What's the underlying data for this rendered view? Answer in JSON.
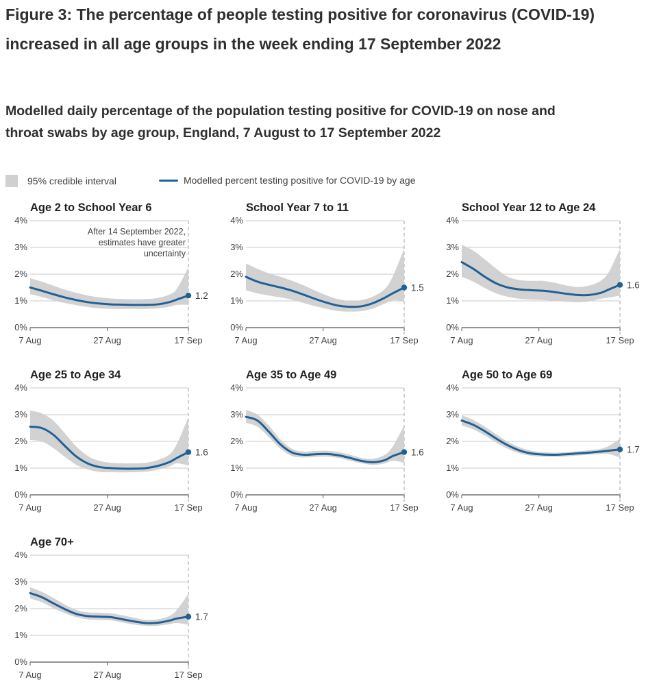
{
  "figure": {
    "title": "Figure 3: The percentage of people testing positive for coronavirus (COVID-19) increased in all age groups in the week ending 17 September 2022",
    "subtitle": "Modelled daily percentage of the population testing positive for COVID-19 on nose and throat swabs by age group, England, 7 August to 17 September 2022"
  },
  "legend": {
    "ci_label": "95% credible interval",
    "line_label": "Modelled percent testing positive for COVID-19 by age"
  },
  "colors": {
    "line": "#206095",
    "interval": "#d0d0d0",
    "grid": "#c8c8c8",
    "axis": "#555555",
    "marker_line": "#b8b8b8"
  },
  "chart_data": [
    {
      "type": "line",
      "title": "Age 2 to School Year 6",
      "x_dates": [
        "2022-08-07",
        "2022-08-10",
        "2022-08-13",
        "2022-08-16",
        "2022-08-19",
        "2022-08-22",
        "2022-08-25",
        "2022-08-28",
        "2022-08-31",
        "2022-09-03",
        "2022-09-06",
        "2022-09-09",
        "2022-09-12",
        "2022-09-14",
        "2022-09-17"
      ],
      "series": [
        {
          "values": [
            1.5,
            1.38,
            1.25,
            1.13,
            1.03,
            0.95,
            0.9,
            0.87,
            0.86,
            0.85,
            0.85,
            0.87,
            0.95,
            1.05,
            1.2
          ]
        }
      ],
      "ci_lower": [
        1.25,
        1.15,
        1.02,
        0.92,
        0.84,
        0.77,
        0.72,
        0.7,
        0.7,
        0.7,
        0.7,
        0.72,
        0.78,
        0.85,
        0.85
      ],
      "ci_upper": [
        1.85,
        1.72,
        1.57,
        1.42,
        1.3,
        1.2,
        1.13,
        1.09,
        1.07,
        1.06,
        1.07,
        1.11,
        1.23,
        1.45,
        2.25
      ],
      "end_value": "1.2",
      "annotation": [
        "After 14 September 2022,",
        "estimates have greater",
        "uncertainty"
      ],
      "x_tick_labels": [
        "7 Aug",
        "27 Aug",
        "17 Sep"
      ],
      "y_tick_labels": [
        "0%",
        "1%",
        "2%",
        "3%",
        "4%"
      ],
      "ylim": [
        0,
        4
      ],
      "marker_date": "2022-09-17"
    },
    {
      "type": "line",
      "title": "School Year 7 to 11",
      "x_dates": [
        "2022-08-07",
        "2022-08-10",
        "2022-08-13",
        "2022-08-16",
        "2022-08-19",
        "2022-08-22",
        "2022-08-25",
        "2022-08-28",
        "2022-08-31",
        "2022-09-03",
        "2022-09-06",
        "2022-09-09",
        "2022-09-12",
        "2022-09-14",
        "2022-09-17"
      ],
      "series": [
        {
          "values": [
            1.9,
            1.72,
            1.6,
            1.5,
            1.38,
            1.23,
            1.07,
            0.93,
            0.82,
            0.78,
            0.8,
            0.92,
            1.12,
            1.28,
            1.5
          ]
        }
      ],
      "ci_lower": [
        1.4,
        1.28,
        1.2,
        1.13,
        1.04,
        0.92,
        0.8,
        0.7,
        0.62,
        0.6,
        0.62,
        0.72,
        0.9,
        1.02,
        1.0
      ],
      "ci_upper": [
        2.4,
        2.2,
        2.03,
        1.9,
        1.75,
        1.58,
        1.38,
        1.2,
        1.06,
        1.0,
        1.03,
        1.17,
        1.45,
        1.9,
        2.95
      ],
      "end_value": "1.5",
      "x_tick_labels": [
        "7 Aug",
        "27 Aug",
        "17 Sep"
      ],
      "y_tick_labels": [
        "0%",
        "1%",
        "2%",
        "3%",
        "4%"
      ],
      "ylim": [
        0,
        4
      ],
      "marker_date": "2022-09-17"
    },
    {
      "type": "line",
      "title": "School Year 12 to Age 24",
      "x_dates": [
        "2022-08-07",
        "2022-08-10",
        "2022-08-13",
        "2022-08-16",
        "2022-08-19",
        "2022-08-22",
        "2022-08-25",
        "2022-08-28",
        "2022-08-31",
        "2022-09-03",
        "2022-09-06",
        "2022-09-09",
        "2022-09-12",
        "2022-09-14",
        "2022-09-17"
      ],
      "series": [
        {
          "values": [
            2.45,
            2.2,
            1.9,
            1.65,
            1.5,
            1.43,
            1.4,
            1.38,
            1.33,
            1.27,
            1.22,
            1.22,
            1.3,
            1.42,
            1.6
          ]
        }
      ],
      "ci_lower": [
        1.9,
        1.72,
        1.48,
        1.28,
        1.15,
        1.08,
        1.05,
        1.03,
        1.0,
        0.97,
        0.95,
        0.98,
        1.08,
        1.12,
        1.2
      ],
      "ci_upper": [
        3.1,
        2.88,
        2.55,
        2.2,
        1.9,
        1.78,
        1.75,
        1.75,
        1.68,
        1.58,
        1.52,
        1.57,
        1.75,
        2.05,
        2.95
      ],
      "end_value": "1.6",
      "x_tick_labels": [
        "7 Aug",
        "27 Aug",
        "17 Sep"
      ],
      "y_tick_labels": [
        "0%",
        "1%",
        "2%",
        "3%",
        "4%"
      ],
      "ylim": [
        0,
        4
      ],
      "marker_date": "2022-09-17"
    },
    {
      "type": "line",
      "title": "Age 25 to Age 34",
      "x_dates": [
        "2022-08-07",
        "2022-08-10",
        "2022-08-13",
        "2022-08-16",
        "2022-08-19",
        "2022-08-22",
        "2022-08-25",
        "2022-08-28",
        "2022-08-31",
        "2022-09-03",
        "2022-09-06",
        "2022-09-09",
        "2022-09-12",
        "2022-09-14",
        "2022-09-17"
      ],
      "series": [
        {
          "values": [
            2.55,
            2.5,
            2.25,
            1.83,
            1.43,
            1.17,
            1.04,
            1.0,
            0.98,
            0.98,
            1.0,
            1.08,
            1.22,
            1.38,
            1.6
          ]
        }
      ],
      "ci_lower": [
        2.05,
        2.0,
        1.75,
        1.42,
        1.12,
        0.95,
        0.86,
        0.85,
        0.84,
        0.85,
        0.87,
        0.94,
        1.06,
        1.18,
        1.1
      ],
      "ci_upper": [
        3.15,
        3.05,
        2.78,
        2.3,
        1.8,
        1.45,
        1.27,
        1.2,
        1.18,
        1.18,
        1.2,
        1.3,
        1.5,
        1.9,
        2.9
      ],
      "end_value": "1.6",
      "x_tick_labels": [
        "7 Aug",
        "27 Aug",
        "17 Sep"
      ],
      "y_tick_labels": [
        "0%",
        "1%",
        "2%",
        "3%",
        "4%"
      ],
      "ylim": [
        0,
        4
      ],
      "marker_date": "2022-09-17"
    },
    {
      "type": "line",
      "title": "Age 35 to Age 49",
      "x_dates": [
        "2022-08-07",
        "2022-08-10",
        "2022-08-13",
        "2022-08-16",
        "2022-08-19",
        "2022-08-22",
        "2022-08-25",
        "2022-08-28",
        "2022-08-31",
        "2022-09-03",
        "2022-09-06",
        "2022-09-09",
        "2022-09-12",
        "2022-09-14",
        "2022-09-17"
      ],
      "series": [
        {
          "values": [
            2.92,
            2.78,
            2.35,
            1.88,
            1.58,
            1.5,
            1.52,
            1.53,
            1.48,
            1.38,
            1.27,
            1.22,
            1.3,
            1.45,
            1.6
          ]
        }
      ],
      "ci_lower": [
        2.7,
        2.55,
        2.15,
        1.72,
        1.45,
        1.4,
        1.42,
        1.43,
        1.38,
        1.28,
        1.18,
        1.12,
        1.18,
        1.28,
        1.2
      ],
      "ci_upper": [
        3.18,
        3.0,
        2.58,
        2.06,
        1.72,
        1.62,
        1.64,
        1.65,
        1.6,
        1.5,
        1.38,
        1.35,
        1.5,
        1.8,
        2.6
      ],
      "end_value": "1.6",
      "x_tick_labels": [
        "7 Aug",
        "27 Aug",
        "17 Sep"
      ],
      "y_tick_labels": [
        "0%",
        "1%",
        "2%",
        "3%",
        "4%"
      ],
      "ylim": [
        0,
        4
      ],
      "marker_date": "2022-09-17"
    },
    {
      "type": "line",
      "title": "Age 50 to Age 69",
      "x_dates": [
        "2022-08-07",
        "2022-08-10",
        "2022-08-13",
        "2022-08-16",
        "2022-08-19",
        "2022-08-22",
        "2022-08-25",
        "2022-08-28",
        "2022-08-31",
        "2022-09-03",
        "2022-09-06",
        "2022-09-09",
        "2022-09-12",
        "2022-09-14",
        "2022-09-17"
      ],
      "series": [
        {
          "values": [
            2.78,
            2.62,
            2.38,
            2.1,
            1.85,
            1.66,
            1.55,
            1.51,
            1.5,
            1.52,
            1.55,
            1.58,
            1.62,
            1.65,
            1.7
          ]
        }
      ],
      "ci_lower": [
        2.6,
        2.45,
        2.22,
        1.95,
        1.72,
        1.55,
        1.46,
        1.43,
        1.42,
        1.44,
        1.47,
        1.5,
        1.53,
        1.53,
        1.4
      ],
      "ci_upper": [
        2.98,
        2.8,
        2.55,
        2.26,
        1.98,
        1.78,
        1.65,
        1.6,
        1.58,
        1.6,
        1.63,
        1.67,
        1.72,
        1.82,
        2.1
      ],
      "end_value": "1.7",
      "x_tick_labels": [
        "7 Aug",
        "27 Aug",
        "17 Sep"
      ],
      "y_tick_labels": [
        "0%",
        "1%",
        "2%",
        "3%",
        "4%"
      ],
      "ylim": [
        0,
        4
      ],
      "marker_date": "2022-09-17"
    },
    {
      "type": "line",
      "title": "Age 70+",
      "x_dates": [
        "2022-08-07",
        "2022-08-10",
        "2022-08-13",
        "2022-08-16",
        "2022-08-19",
        "2022-08-22",
        "2022-08-25",
        "2022-08-28",
        "2022-08-31",
        "2022-09-03",
        "2022-09-06",
        "2022-09-09",
        "2022-09-12",
        "2022-09-14",
        "2022-09-17"
      ],
      "series": [
        {
          "values": [
            2.58,
            2.43,
            2.2,
            1.98,
            1.8,
            1.72,
            1.7,
            1.68,
            1.6,
            1.52,
            1.46,
            1.47,
            1.55,
            1.63,
            1.7
          ]
        }
      ],
      "ci_lower": [
        2.38,
        2.24,
        2.02,
        1.83,
        1.68,
        1.6,
        1.58,
        1.56,
        1.48,
        1.4,
        1.36,
        1.36,
        1.42,
        1.46,
        1.4
      ],
      "ci_upper": [
        2.8,
        2.63,
        2.4,
        2.15,
        1.95,
        1.86,
        1.85,
        1.82,
        1.75,
        1.66,
        1.58,
        1.6,
        1.72,
        1.95,
        2.55
      ],
      "end_value": "1.7",
      "x_tick_labels": [
        "7 Aug",
        "27 Aug",
        "17 Sep"
      ],
      "y_tick_labels": [
        "0%",
        "1%",
        "2%",
        "3%",
        "4%"
      ],
      "ylim": [
        0,
        4
      ],
      "marker_date": "2022-09-17"
    }
  ]
}
